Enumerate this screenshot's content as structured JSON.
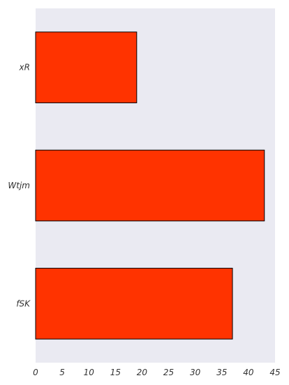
{
  "chart_data": {
    "type": "bar",
    "orientation": "horizontal",
    "categories": [
      "xR",
      "Wtjm",
      "fSK"
    ],
    "values": [
      19,
      43,
      37
    ],
    "xlim": [
      0,
      45
    ],
    "xticks": [
      0,
      5,
      10,
      15,
      20,
      25,
      30,
      35,
      40,
      45
    ],
    "title": "",
    "xlabel": "",
    "ylabel": "",
    "grid": false,
    "colors": {
      "bar_fill": "#ff3300",
      "bar_edge": "#000000",
      "plot_background": "#eaeaf2"
    }
  }
}
